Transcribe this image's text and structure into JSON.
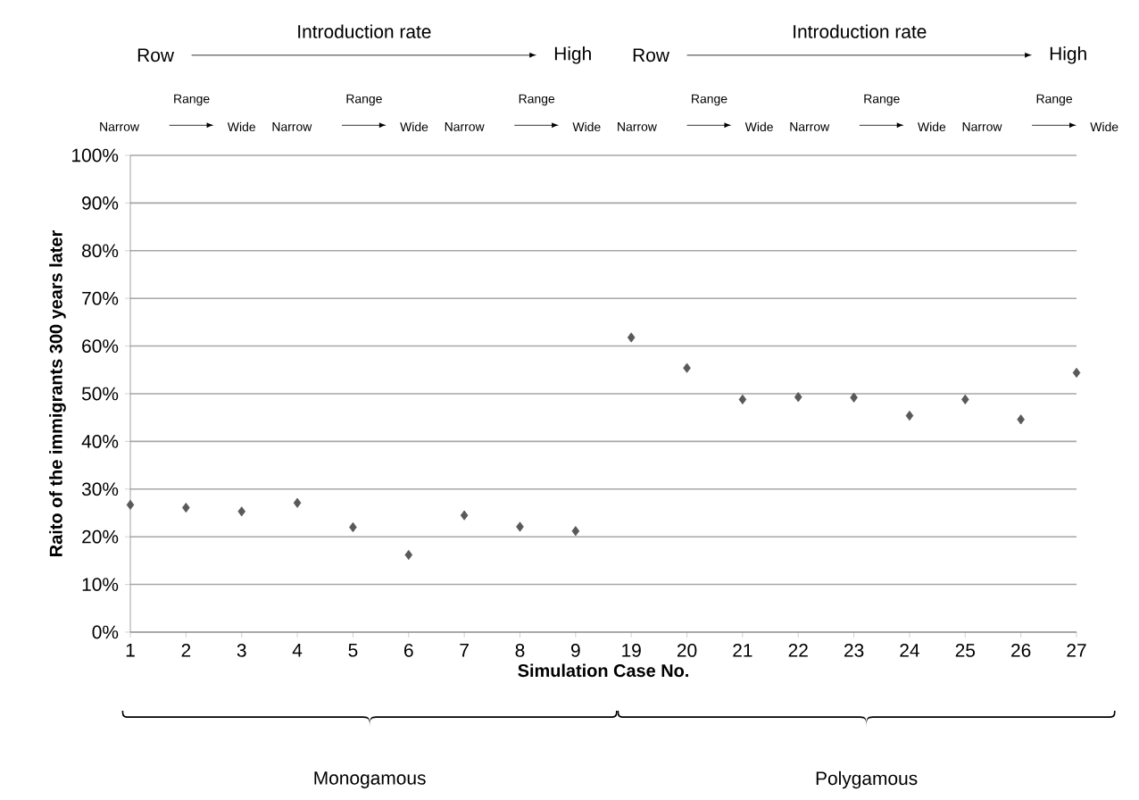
{
  "chart_data": {
    "type": "scatter",
    "xlabel": "Simulation Case No.",
    "ylabel": "Raito of the immigrants 300 years later",
    "categories": [
      "1",
      "2",
      "3",
      "4",
      "5",
      "6",
      "7",
      "8",
      "9",
      "19",
      "20",
      "21",
      "22",
      "23",
      "24",
      "25",
      "26",
      "27"
    ],
    "series": [
      {
        "color": "#595959",
        "values": [
          26.7,
          26.1,
          25.3,
          27.1,
          22.0,
          16.2,
          24.5,
          22.1,
          21.2,
          61.8,
          55.4,
          48.8,
          49.3,
          49.2,
          45.4,
          48.8,
          44.6,
          54.4
        ]
      }
    ],
    "ylim": [
      0,
      100
    ],
    "yticks": [
      {
        "value": 0,
        "label": "0%"
      },
      {
        "value": 10,
        "label": "10%"
      },
      {
        "value": 20,
        "label": "20%"
      },
      {
        "value": 30,
        "label": "30%"
      },
      {
        "value": 40,
        "label": "40%"
      },
      {
        "value": 50,
        "label": "50%"
      },
      {
        "value": 60,
        "label": "60%"
      },
      {
        "value": 70,
        "label": "70%"
      },
      {
        "value": 80,
        "label": "80%"
      },
      {
        "value": 90,
        "label": "90%"
      },
      {
        "value": 100,
        "label": "100%"
      }
    ],
    "grid": "y",
    "marker": "diamond",
    "annotations": [
      "Row",
      "Introduction rate",
      "High",
      "Row",
      "Introduction rate",
      "High",
      "Narrow",
      "Range",
      "Wide",
      "Narrow",
      "Range",
      "Wide",
      "Narrow",
      "Range",
      "Wide",
      "Narrow",
      "Range",
      "Wide",
      "Narrow",
      "Range",
      "Wide",
      "Narrow",
      "Range",
      "Wide",
      "Monogamous",
      "Polygamous"
    ]
  }
}
